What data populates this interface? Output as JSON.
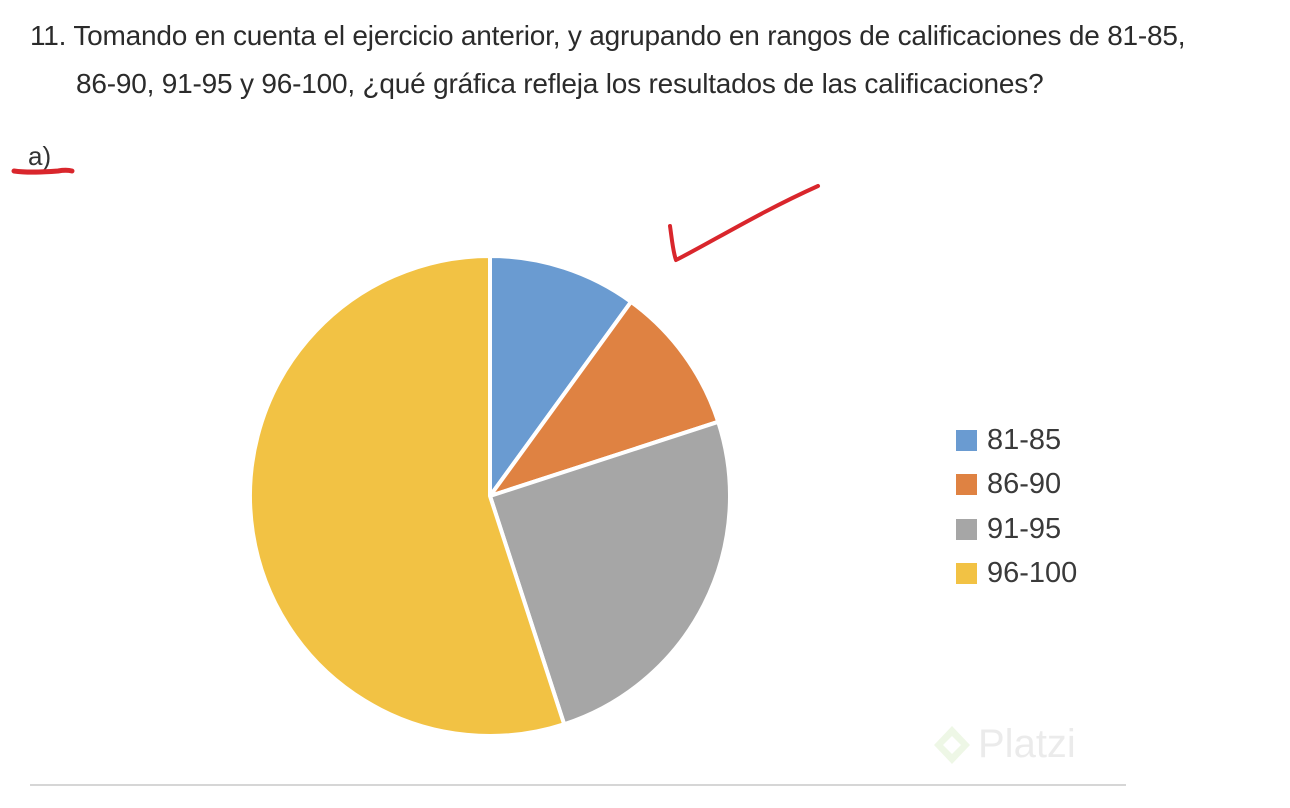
{
  "question": {
    "line1": "11. Tomando en cuenta el ejercicio anterior, y agrupando en rangos de calificaciones de 81-85,",
    "line2": "86-90, 91-95 y 96-100, ¿qué gráfica refleja los resultados de las calificaciones?"
  },
  "option_label": "a)",
  "watermark": "Platzi",
  "annotation_colors": {
    "ink": "#d9262c"
  },
  "chart_data": {
    "type": "pie",
    "categories": [
      "81-85",
      "86-90",
      "91-95",
      "96-100"
    ],
    "values": [
      10,
      10,
      25,
      55
    ],
    "colors": [
      "#6a9bd1",
      "#df8242",
      "#a6a6a6",
      "#f2c244"
    ],
    "start_angle_deg": 0,
    "direction": "clockwise",
    "legend": "right",
    "title": ""
  }
}
